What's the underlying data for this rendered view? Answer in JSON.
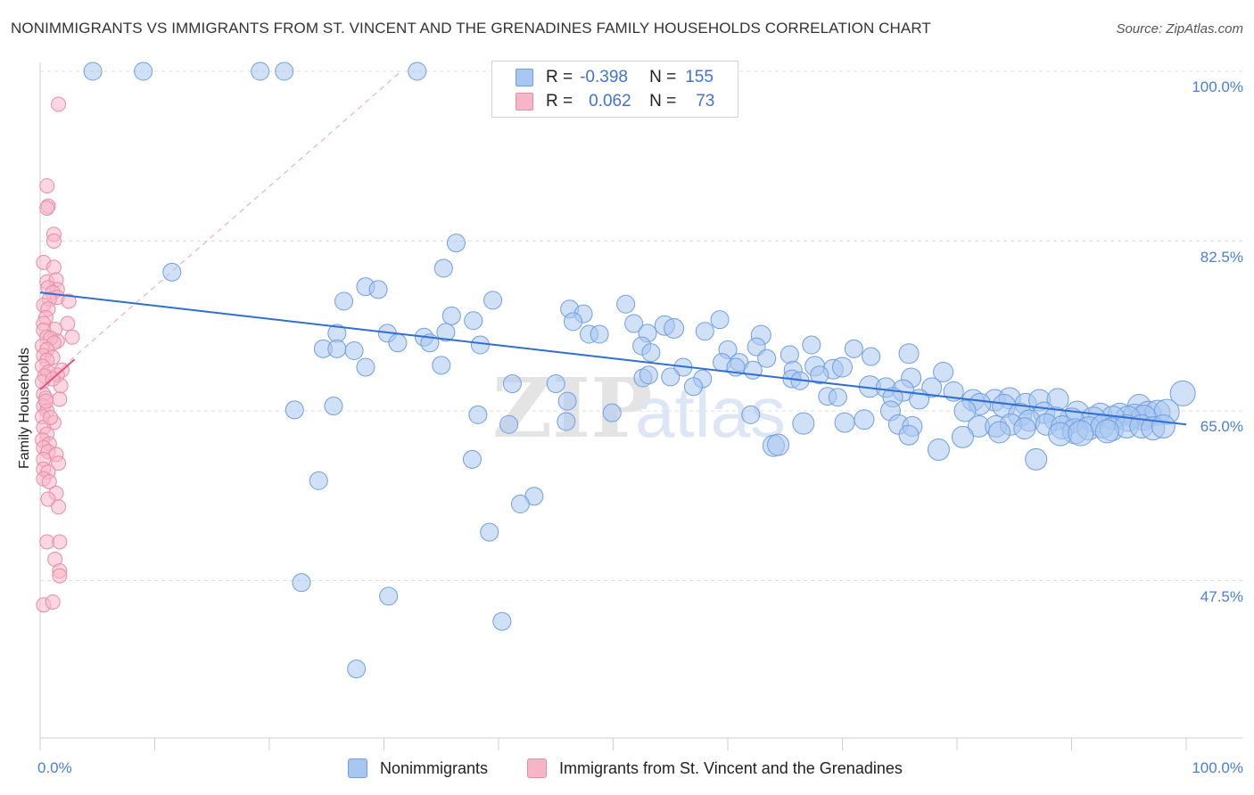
{
  "title": "NONIMMIGRANTS VS IMMIGRANTS FROM ST. VINCENT AND THE GRENADINES FAMILY HOUSEHOLDS CORRELATION CHART",
  "source": "Source: ZipAtlas.com",
  "watermark": {
    "zip": "ZIP",
    "atlas": "atlas"
  },
  "legend": {
    "rows": [
      {
        "r_label": "R =",
        "r_value": "-0.398",
        "n_label": "N =",
        "n_value": "155"
      },
      {
        "r_label": "R =",
        "r_value": "0.062",
        "n_label": "N =",
        "n_value": "73"
      }
    ]
  },
  "bottom_legend": [
    "Nonimmigrants",
    "Immigrants from St. Vincent and the Grenadines"
  ],
  "colors": {
    "blue_fill": "#a9c6f0",
    "blue_stroke": "#6f9fe0",
    "blue_line": "#2f6fd1",
    "pink_fill": "#f6b6c8",
    "pink_stroke": "#e98aa6",
    "pink_line": "#e8507c",
    "tick_text": "#4a7fd4",
    "grid": "#dddddd"
  },
  "chart_data": {
    "type": "scatter",
    "title": "NONIMMIGRANTS VS IMMIGRANTS FROM ST. VINCENT AND THE GRENADINES FAMILY HOUSEHOLDS CORRELATION CHART",
    "xlabel": "",
    "ylabel": "Family Households",
    "xlim": [
      0,
      100
    ],
    "ylim": [
      33,
      102
    ],
    "x_tick_labels": [
      "0.0%",
      "100.0%"
    ],
    "y_ticks": [
      {
        "value": 100.0,
        "label": "100.0%"
      },
      {
        "value": 82.5,
        "label": "82.5%"
      },
      {
        "value": 65.0,
        "label": "65.0%"
      },
      {
        "value": 47.5,
        "label": "47.5%"
      }
    ],
    "series": [
      {
        "name": "Nonimmigrants",
        "color": "#a9c6f0",
        "trend": {
          "x0": 0,
          "y0": 77.2,
          "x1": 100,
          "y1": 63.6
        },
        "points": [
          [
            4.6,
            100,
            10
          ],
          [
            9.0,
            100,
            10
          ],
          [
            19.2,
            100,
            10
          ],
          [
            21.3,
            100,
            10
          ],
          [
            32.9,
            100,
            10
          ],
          [
            11.5,
            79.3,
            10
          ],
          [
            36.3,
            82.3,
            10
          ],
          [
            35.2,
            79.7,
            10
          ],
          [
            28.4,
            77.8,
            10
          ],
          [
            29.5,
            77.5,
            10
          ],
          [
            26.5,
            76.3,
            10
          ],
          [
            39.5,
            76.4,
            10
          ],
          [
            46.2,
            75.5,
            10
          ],
          [
            47.4,
            75.0,
            10
          ],
          [
            35.9,
            74.8,
            10
          ],
          [
            37.8,
            74.3,
            10
          ],
          [
            51.8,
            74.0,
            10
          ],
          [
            51.1,
            76.0,
            10
          ],
          [
            46.5,
            74.2,
            10
          ],
          [
            25.9,
            73.0,
            10
          ],
          [
            30.3,
            73.0,
            10
          ],
          [
            33.5,
            72.6,
            10
          ],
          [
            35.4,
            73.1,
            10
          ],
          [
            47.9,
            72.9,
            10
          ],
          [
            48.8,
            72.9,
            10
          ],
          [
            53.0,
            73.0,
            10
          ],
          [
            54.5,
            73.8,
            11
          ],
          [
            55.3,
            73.5,
            11
          ],
          [
            59.3,
            74.4,
            10
          ],
          [
            58.0,
            73.2,
            10
          ],
          [
            62.9,
            72.8,
            11
          ],
          [
            34.0,
            72.0,
            10
          ],
          [
            31.2,
            72.0,
            10
          ],
          [
            38.4,
            71.8,
            10
          ],
          [
            24.7,
            71.4,
            10
          ],
          [
            25.9,
            71.4,
            10
          ],
          [
            27.4,
            71.2,
            10
          ],
          [
            52.5,
            71.7,
            10
          ],
          [
            53.3,
            71.0,
            10
          ],
          [
            60.0,
            71.3,
            10
          ],
          [
            62.5,
            71.6,
            10
          ],
          [
            67.3,
            71.8,
            10
          ],
          [
            71.0,
            71.4,
            10
          ],
          [
            72.5,
            70.6,
            10
          ],
          [
            75.8,
            70.9,
            11
          ],
          [
            59.5,
            70.0,
            10
          ],
          [
            61.0,
            70.0,
            10
          ],
          [
            63.4,
            70.4,
            10
          ],
          [
            65.4,
            70.8,
            10
          ],
          [
            56.1,
            69.5,
            10
          ],
          [
            60.7,
            69.5,
            10
          ],
          [
            62.2,
            69.2,
            10
          ],
          [
            28.4,
            69.5,
            10
          ],
          [
            35.0,
            69.7,
            10
          ],
          [
            65.7,
            69.2,
            10
          ],
          [
            67.6,
            69.6,
            11
          ],
          [
            69.2,
            69.3,
            11
          ],
          [
            70.0,
            69.5,
            11
          ],
          [
            78.8,
            69.0,
            11
          ],
          [
            55.0,
            68.5,
            10
          ],
          [
            52.6,
            68.4,
            10
          ],
          [
            53.1,
            68.7,
            10
          ],
          [
            57.8,
            68.3,
            10
          ],
          [
            65.6,
            68.3,
            10
          ],
          [
            66.3,
            68.1,
            10
          ],
          [
            68.0,
            68.7,
            10
          ],
          [
            76.0,
            68.4,
            11
          ],
          [
            41.2,
            67.8,
            10
          ],
          [
            45.0,
            67.8,
            10
          ],
          [
            57.0,
            67.5,
            10
          ],
          [
            72.4,
            67.5,
            12
          ],
          [
            73.8,
            67.4,
            11
          ],
          [
            75.3,
            67.1,
            12
          ],
          [
            77.8,
            67.4,
            11
          ],
          [
            79.7,
            67.0,
            11
          ],
          [
            68.7,
            66.5,
            10
          ],
          [
            69.6,
            66.4,
            10
          ],
          [
            74.4,
            66.4,
            11
          ],
          [
            76.7,
            66.2,
            11
          ],
          [
            81.4,
            66.1,
            12
          ],
          [
            83.3,
            66.1,
            12
          ],
          [
            84.6,
            66.3,
            12
          ],
          [
            46.0,
            66.0,
            10
          ],
          [
            82.0,
            65.7,
            12
          ],
          [
            84.1,
            65.5,
            13
          ],
          [
            86.0,
            65.7,
            12
          ],
          [
            87.2,
            66.1,
            12
          ],
          [
            88.8,
            66.2,
            12
          ],
          [
            95.9,
            65.5,
            13
          ],
          [
            99.7,
            66.8,
            14
          ],
          [
            22.2,
            65.1,
            10
          ],
          [
            25.6,
            65.5,
            10
          ],
          [
            74.2,
            65.0,
            11
          ],
          [
            80.7,
            65.0,
            12
          ],
          [
            85.5,
            64.6,
            13
          ],
          [
            87.6,
            64.8,
            12
          ],
          [
            90.5,
            64.8,
            13
          ],
          [
            92.5,
            64.6,
            13
          ],
          [
            94.2,
            64.6,
            13
          ],
          [
            95.5,
            64.5,
            13
          ],
          [
            96.7,
            64.7,
            14
          ],
          [
            97.5,
            64.8,
            14
          ],
          [
            98.3,
            64.9,
            14
          ],
          [
            96.3,
            64.3,
            14
          ],
          [
            94.9,
            64.2,
            14
          ],
          [
            93.6,
            64.3,
            13
          ],
          [
            91.9,
            64.1,
            14
          ],
          [
            90.0,
            64.0,
            14
          ],
          [
            88.6,
            64.2,
            13
          ],
          [
            86.3,
            64.0,
            12
          ],
          [
            38.2,
            64.6,
            10
          ],
          [
            49.9,
            64.8,
            10
          ],
          [
            62.0,
            64.6,
            10
          ],
          [
            71.9,
            64.1,
            11
          ],
          [
            40.9,
            63.6,
            10
          ],
          [
            45.9,
            63.9,
            10
          ],
          [
            66.6,
            63.7,
            12
          ],
          [
            70.2,
            63.8,
            11
          ],
          [
            74.9,
            63.6,
            11
          ],
          [
            76.1,
            63.4,
            11
          ],
          [
            81.9,
            63.4,
            12
          ],
          [
            83.4,
            63.4,
            12
          ],
          [
            84.7,
            63.6,
            12
          ],
          [
            85.9,
            63.2,
            12
          ],
          [
            87.8,
            63.6,
            12
          ],
          [
            89.2,
            63.3,
            13
          ],
          [
            90.3,
            62.9,
            14
          ],
          [
            91.5,
            63.2,
            13
          ],
          [
            92.7,
            63.4,
            13
          ],
          [
            93.5,
            63.1,
            13
          ],
          [
            94.8,
            63.4,
            13
          ],
          [
            96.1,
            63.4,
            13
          ],
          [
            97.1,
            63.2,
            13
          ],
          [
            98.0,
            63.4,
            13
          ],
          [
            75.8,
            62.5,
            11
          ],
          [
            80.5,
            62.3,
            12
          ],
          [
            83.7,
            62.8,
            12
          ],
          [
            89.0,
            62.6,
            13
          ],
          [
            90.8,
            62.7,
            14
          ],
          [
            93.1,
            62.9,
            13
          ],
          [
            64.0,
            61.4,
            12
          ],
          [
            64.4,
            61.5,
            12
          ],
          [
            78.4,
            61.0,
            12
          ],
          [
            86.9,
            60.0,
            12
          ],
          [
            37.7,
            60.0,
            10
          ],
          [
            24.3,
            57.8,
            10
          ],
          [
            43.1,
            56.2,
            10
          ],
          [
            41.9,
            55.4,
            10
          ],
          [
            39.2,
            52.5,
            10
          ],
          [
            22.8,
            47.3,
            10
          ],
          [
            30.4,
            45.9,
            10
          ],
          [
            40.3,
            43.3,
            10
          ],
          [
            27.6,
            38.4,
            10
          ]
        ]
      },
      {
        "name": "Immigrants from St. Vincent and the Grenadines",
        "color": "#f6b6c8",
        "trend": {
          "x0": 0,
          "y0": 67.2,
          "x1": 3.0,
          "y1": 70.3
        },
        "points": [
          [
            1.6,
            96.6
          ],
          [
            0.6,
            88.2
          ],
          [
            0.7,
            86.1
          ],
          [
            0.6,
            85.9
          ],
          [
            1.2,
            83.2
          ],
          [
            1.2,
            82.5
          ],
          [
            0.3,
            80.3
          ],
          [
            1.2,
            79.8
          ],
          [
            0.6,
            78.3
          ],
          [
            1.4,
            78.5
          ],
          [
            1.5,
            77.5
          ],
          [
            0.7,
            77.7
          ],
          [
            1.1,
            77.2
          ],
          [
            1.5,
            76.7
          ],
          [
            0.8,
            76.5
          ],
          [
            2.5,
            76.3
          ],
          [
            0.3,
            75.9
          ],
          [
            0.7,
            75.5
          ],
          [
            0.5,
            74.6
          ],
          [
            0.3,
            74.0
          ],
          [
            2.4,
            74.0
          ],
          [
            1.3,
            73.4
          ],
          [
            0.3,
            73.3
          ],
          [
            0.6,
            72.6
          ],
          [
            1.5,
            72.2
          ],
          [
            0.9,
            72.5
          ],
          [
            2.8,
            72.6
          ],
          [
            1.2,
            72.0
          ],
          [
            0.2,
            71.7
          ],
          [
            0.6,
            71.3
          ],
          [
            0.3,
            70.7
          ],
          [
            1.1,
            70.5
          ],
          [
            0.6,
            70.2
          ],
          [
            0.2,
            69.6
          ],
          [
            1.9,
            69.2
          ],
          [
            0.7,
            69.0
          ],
          [
            0.4,
            68.6
          ],
          [
            1.5,
            68.7
          ],
          [
            0.2,
            68.0
          ],
          [
            1.8,
            67.6
          ],
          [
            0.3,
            66.7
          ],
          [
            0.5,
            66.3
          ],
          [
            1.7,
            66.2
          ],
          [
            0.3,
            65.5
          ],
          [
            0.6,
            65.0
          ],
          [
            0.2,
            64.4
          ],
          [
            1.2,
            63.8
          ],
          [
            0.3,
            63.3
          ],
          [
            0.6,
            62.6
          ],
          [
            0.2,
            62.0
          ],
          [
            0.8,
            61.6
          ],
          [
            0.3,
            61.2
          ],
          [
            0.7,
            60.8
          ],
          [
            1.4,
            60.5
          ],
          [
            0.3,
            60.0
          ],
          [
            1.6,
            59.6
          ],
          [
            0.3,
            59.0
          ],
          [
            0.7,
            58.7
          ],
          [
            0.3,
            58.0
          ],
          [
            0.8,
            57.7
          ],
          [
            1.4,
            56.5
          ],
          [
            0.7,
            55.9
          ],
          [
            1.6,
            55.1
          ],
          [
            0.6,
            51.5
          ],
          [
            1.7,
            51.5
          ],
          [
            1.3,
            49.7
          ],
          [
            1.7,
            48.5
          ],
          [
            1.7,
            48.0
          ],
          [
            0.3,
            45.0
          ],
          [
            1.1,
            45.3
          ],
          [
            0.5,
            66.0
          ],
          [
            1.1,
            68.3
          ],
          [
            0.9,
            64.3
          ]
        ]
      }
    ],
    "reference_line": {
      "style": "dashed",
      "x0": 0,
      "y0": 67.5,
      "x1": 31.5,
      "y1": 100
    }
  }
}
